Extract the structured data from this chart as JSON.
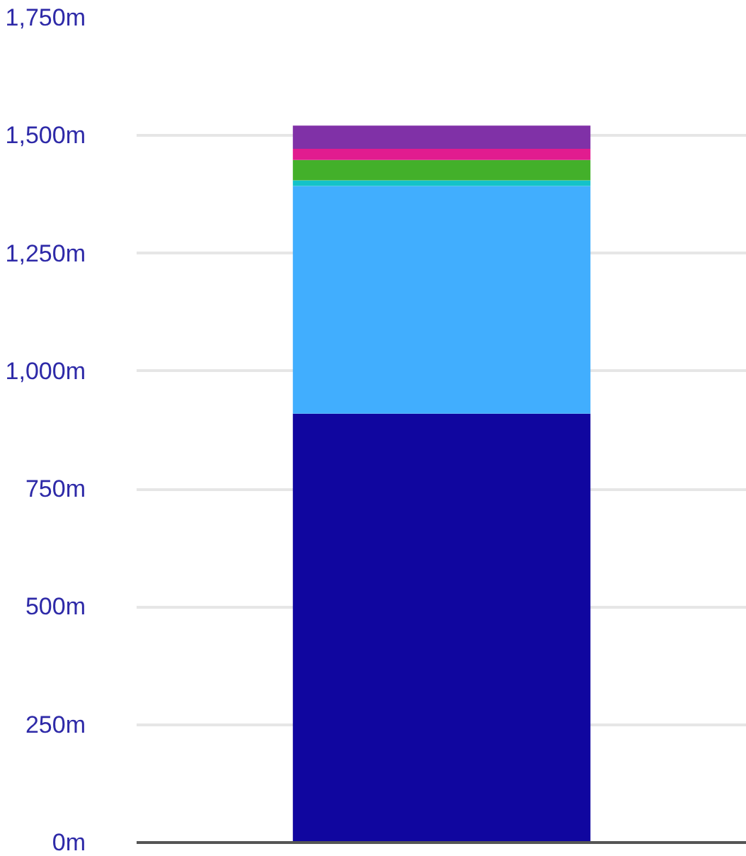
{
  "chart_data": {
    "type": "bar",
    "stacked": true,
    "categories": [
      null
    ],
    "series": [
      {
        "color": "#10069f",
        "values": [
          910
        ]
      },
      {
        "color": "#41aefe",
        "values": [
          483
        ]
      },
      {
        "color": "#14c2c9",
        "values": [
          12
        ]
      },
      {
        "color": "#43b02a",
        "values": [
          43
        ]
      },
      {
        "color": "#e11c8f",
        "values": [
          24
        ]
      },
      {
        "color": "#8031a7",
        "values": [
          49
        ]
      }
    ],
    "ylim": [
      0,
      1750
    ],
    "yticks": [
      {
        "value": 0,
        "label": "0m"
      },
      {
        "value": 250,
        "label": "250m"
      },
      {
        "value": 500,
        "label": "500m"
      },
      {
        "value": 750,
        "label": "750m"
      },
      {
        "value": 1000,
        "label": "1,000m"
      },
      {
        "value": 1250,
        "label": "1,250m"
      },
      {
        "value": 1500,
        "label": "1,500m"
      },
      {
        "value": 1750,
        "label": "1,750m"
      }
    ],
    "grid": "y"
  }
}
